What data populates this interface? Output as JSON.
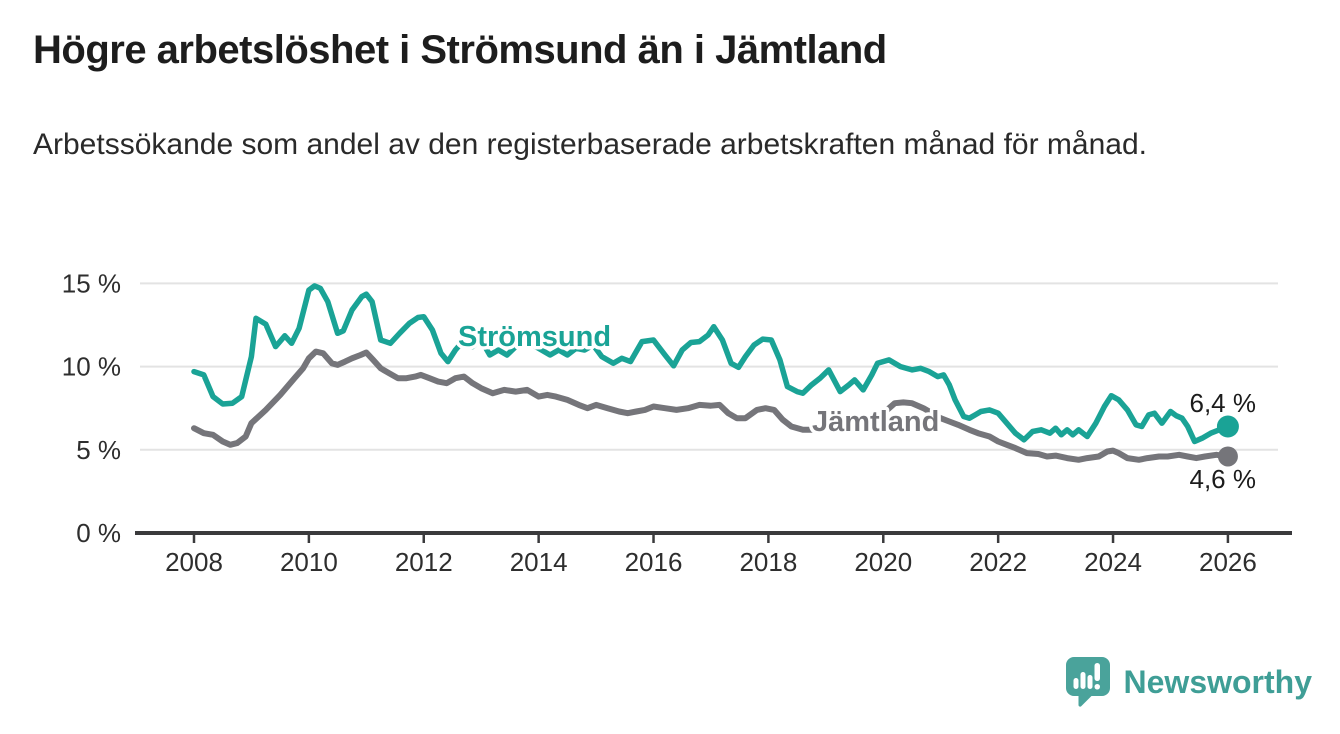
{
  "header": {
    "title": "Högre arbetslöshet i Strömsund än i Jämtland",
    "subtitle": "Arbetssökande som andel av den registerbaserade arbetskraften månad för månad."
  },
  "footer": {
    "brand": "Newsworthy"
  },
  "colors": {
    "stromsund": "#1aa396",
    "jamtland": "#75757a",
    "axis": "#3a3a3c",
    "gridline": "#e3e3e3",
    "tick_text": "#2e2e2e",
    "brand_teal": "#4aa39b",
    "brand_text": "#3f9e96"
  },
  "chart_data": {
    "type": "line",
    "title": "Högre arbetslöshet i Strömsund än i Jämtland",
    "subtitle": "Arbetssökande som andel av den registerbaserade arbetskraften månad för månad.",
    "xlabel": "",
    "ylabel": "",
    "unit": "%",
    "grid": "horizontal",
    "legend_position": "inline-labels",
    "ylim": [
      0,
      15.6
    ],
    "xlim": [
      2007,
      2027.1
    ],
    "y_ticks": [
      {
        "value": 0,
        "label": "0 %"
      },
      {
        "value": 5,
        "label": "5 %"
      },
      {
        "value": 10,
        "label": "10 %"
      },
      {
        "value": 15,
        "label": "15 %"
      }
    ],
    "x_ticks": [
      {
        "value": 2008,
        "label": "2008"
      },
      {
        "value": 2010,
        "label": "2010"
      },
      {
        "value": 2012,
        "label": "2012"
      },
      {
        "value": 2014,
        "label": "2014"
      },
      {
        "value": 2016,
        "label": "2016"
      },
      {
        "value": 2018,
        "label": "2018"
      },
      {
        "value": 2020,
        "label": "2020"
      },
      {
        "value": 2022,
        "label": "2022"
      },
      {
        "value": 2024,
        "label": "2024"
      },
      {
        "value": 2026,
        "label": "2026"
      }
    ],
    "series": [
      {
        "name": "Strömsund",
        "color": "#1aa396",
        "end_label": "6,4 %",
        "end_value": 6.4,
        "points": [
          [
            2008.0,
            9.7
          ],
          [
            2008.17,
            9.5
          ],
          [
            2008.33,
            8.2
          ],
          [
            2008.5,
            7.75
          ],
          [
            2008.67,
            7.8
          ],
          [
            2008.83,
            8.2
          ],
          [
            2009.0,
            10.6
          ],
          [
            2009.08,
            12.9
          ],
          [
            2009.25,
            12.55
          ],
          [
            2009.42,
            11.2
          ],
          [
            2009.58,
            11.85
          ],
          [
            2009.7,
            11.4
          ],
          [
            2009.83,
            12.3
          ],
          [
            2010.0,
            14.6
          ],
          [
            2010.1,
            14.85
          ],
          [
            2010.2,
            14.7
          ],
          [
            2010.33,
            13.9
          ],
          [
            2010.5,
            12.0
          ],
          [
            2010.6,
            12.15
          ],
          [
            2010.75,
            13.4
          ],
          [
            2010.92,
            14.2
          ],
          [
            2011.0,
            14.35
          ],
          [
            2011.1,
            13.9
          ],
          [
            2011.25,
            11.6
          ],
          [
            2011.42,
            11.4
          ],
          [
            2011.58,
            12.0
          ],
          [
            2011.75,
            12.6
          ],
          [
            2011.9,
            12.95
          ],
          [
            2012.0,
            13.0
          ],
          [
            2012.15,
            12.2
          ],
          [
            2012.3,
            10.8
          ],
          [
            2012.42,
            10.3
          ],
          [
            2012.55,
            11.0
          ],
          [
            2012.7,
            11.6
          ],
          [
            2012.85,
            11.2
          ],
          [
            2013.0,
            11.6
          ],
          [
            2013.15,
            10.7
          ],
          [
            2013.3,
            11.0
          ],
          [
            2013.45,
            10.7
          ],
          [
            2013.6,
            11.2
          ],
          [
            2013.75,
            11.4
          ],
          [
            2013.9,
            11.3
          ],
          [
            2014.05,
            11.0
          ],
          [
            2014.2,
            10.7
          ],
          [
            2014.35,
            11.0
          ],
          [
            2014.5,
            10.7
          ],
          [
            2014.65,
            11.1
          ],
          [
            2014.8,
            11.0
          ],
          [
            2014.95,
            11.3
          ],
          [
            2015.1,
            10.6
          ],
          [
            2015.3,
            10.2
          ],
          [
            2015.45,
            10.5
          ],
          [
            2015.6,
            10.3
          ],
          [
            2015.8,
            11.5
          ],
          [
            2016.0,
            11.6
          ],
          [
            2016.2,
            10.7
          ],
          [
            2016.35,
            10.05
          ],
          [
            2016.5,
            11.0
          ],
          [
            2016.65,
            11.45
          ],
          [
            2016.8,
            11.5
          ],
          [
            2016.95,
            11.9
          ],
          [
            2017.05,
            12.4
          ],
          [
            2017.2,
            11.6
          ],
          [
            2017.35,
            10.2
          ],
          [
            2017.48,
            9.95
          ],
          [
            2017.6,
            10.6
          ],
          [
            2017.75,
            11.3
          ],
          [
            2017.9,
            11.65
          ],
          [
            2018.05,
            11.6
          ],
          [
            2018.2,
            10.4
          ],
          [
            2018.33,
            8.8
          ],
          [
            2018.5,
            8.5
          ],
          [
            2018.6,
            8.4
          ],
          [
            2018.75,
            8.9
          ],
          [
            2018.9,
            9.3
          ],
          [
            2019.05,
            9.8
          ],
          [
            2019.25,
            8.5
          ],
          [
            2019.4,
            8.9
          ],
          [
            2019.5,
            9.2
          ],
          [
            2019.65,
            8.6
          ],
          [
            2019.8,
            9.5
          ],
          [
            2019.9,
            10.2
          ],
          [
            2020.1,
            10.4
          ],
          [
            2020.3,
            10.0
          ],
          [
            2020.5,
            9.8
          ],
          [
            2020.65,
            9.9
          ],
          [
            2020.8,
            9.7
          ],
          [
            2020.95,
            9.4
          ],
          [
            2021.05,
            9.5
          ],
          [
            2021.15,
            8.9
          ],
          [
            2021.25,
            8.0
          ],
          [
            2021.4,
            7.0
          ],
          [
            2021.5,
            6.9
          ],
          [
            2021.6,
            7.1
          ],
          [
            2021.7,
            7.3
          ],
          [
            2021.85,
            7.4
          ],
          [
            2022.0,
            7.2
          ],
          [
            2022.15,
            6.6
          ],
          [
            2022.3,
            6.0
          ],
          [
            2022.45,
            5.6
          ],
          [
            2022.6,
            6.1
          ],
          [
            2022.75,
            6.2
          ],
          [
            2022.9,
            6.0
          ],
          [
            2023.0,
            6.3
          ],
          [
            2023.1,
            5.9
          ],
          [
            2023.2,
            6.2
          ],
          [
            2023.3,
            5.9
          ],
          [
            2023.4,
            6.2
          ],
          [
            2023.55,
            5.8
          ],
          [
            2023.7,
            6.6
          ],
          [
            2023.85,
            7.6
          ],
          [
            2023.97,
            8.25
          ],
          [
            2024.1,
            8.0
          ],
          [
            2024.25,
            7.4
          ],
          [
            2024.4,
            6.5
          ],
          [
            2024.5,
            6.4
          ],
          [
            2024.62,
            7.1
          ],
          [
            2024.72,
            7.2
          ],
          [
            2024.85,
            6.6
          ],
          [
            2025.0,
            7.3
          ],
          [
            2025.1,
            7.05
          ],
          [
            2025.2,
            6.9
          ],
          [
            2025.3,
            6.4
          ],
          [
            2025.42,
            5.5
          ],
          [
            2025.55,
            5.7
          ],
          [
            2025.7,
            6.0
          ],
          [
            2025.85,
            6.2
          ],
          [
            2026.0,
            6.4
          ]
        ]
      },
      {
        "name": "Jämtland",
        "color": "#75757a",
        "end_label": "4,6 %",
        "end_value": 4.6,
        "points": [
          [
            2008.0,
            6.3
          ],
          [
            2008.17,
            6.0
          ],
          [
            2008.33,
            5.9
          ],
          [
            2008.5,
            5.5
          ],
          [
            2008.63,
            5.3
          ],
          [
            2008.75,
            5.4
          ],
          [
            2008.9,
            5.8
          ],
          [
            2009.0,
            6.6
          ],
          [
            2009.25,
            7.4
          ],
          [
            2009.5,
            8.3
          ],
          [
            2009.75,
            9.3
          ],
          [
            2009.9,
            9.9
          ],
          [
            2010.0,
            10.5
          ],
          [
            2010.12,
            10.9
          ],
          [
            2010.25,
            10.8
          ],
          [
            2010.4,
            10.2
          ],
          [
            2010.5,
            10.1
          ],
          [
            2010.63,
            10.3
          ],
          [
            2010.75,
            10.5
          ],
          [
            2010.9,
            10.7
          ],
          [
            2011.0,
            10.85
          ],
          [
            2011.12,
            10.4
          ],
          [
            2011.25,
            9.9
          ],
          [
            2011.4,
            9.6
          ],
          [
            2011.55,
            9.3
          ],
          [
            2011.7,
            9.3
          ],
          [
            2011.85,
            9.4
          ],
          [
            2011.95,
            9.5
          ],
          [
            2012.1,
            9.3
          ],
          [
            2012.25,
            9.1
          ],
          [
            2012.4,
            9.0
          ],
          [
            2012.55,
            9.3
          ],
          [
            2012.7,
            9.4
          ],
          [
            2012.85,
            9.0
          ],
          [
            2013.0,
            8.7
          ],
          [
            2013.2,
            8.4
          ],
          [
            2013.4,
            8.6
          ],
          [
            2013.6,
            8.5
          ],
          [
            2013.8,
            8.6
          ],
          [
            2014.0,
            8.2
          ],
          [
            2014.15,
            8.3
          ],
          [
            2014.3,
            8.2
          ],
          [
            2014.5,
            8.0
          ],
          [
            2014.7,
            7.7
          ],
          [
            2014.85,
            7.5
          ],
          [
            2015.0,
            7.7
          ],
          [
            2015.2,
            7.5
          ],
          [
            2015.4,
            7.3
          ],
          [
            2015.55,
            7.2
          ],
          [
            2015.7,
            7.3
          ],
          [
            2015.85,
            7.4
          ],
          [
            2016.0,
            7.6
          ],
          [
            2016.2,
            7.5
          ],
          [
            2016.4,
            7.4
          ],
          [
            2016.6,
            7.5
          ],
          [
            2016.8,
            7.7
          ],
          [
            2017.0,
            7.65
          ],
          [
            2017.15,
            7.7
          ],
          [
            2017.3,
            7.2
          ],
          [
            2017.45,
            6.9
          ],
          [
            2017.6,
            6.9
          ],
          [
            2017.8,
            7.4
          ],
          [
            2017.95,
            7.5
          ],
          [
            2018.1,
            7.4
          ],
          [
            2018.25,
            6.8
          ],
          [
            2018.4,
            6.4
          ],
          [
            2018.6,
            6.2
          ],
          [
            2018.8,
            6.2
          ],
          [
            2019.0,
            6.5
          ],
          [
            2019.2,
            6.6
          ],
          [
            2019.4,
            6.5
          ],
          [
            2019.6,
            6.6
          ],
          [
            2019.8,
            6.8
          ],
          [
            2020.0,
            7.2
          ],
          [
            2020.2,
            7.8
          ],
          [
            2020.35,
            7.85
          ],
          [
            2020.5,
            7.8
          ],
          [
            2020.7,
            7.5
          ],
          [
            2020.9,
            7.1
          ],
          [
            2021.0,
            6.9
          ],
          [
            2021.15,
            6.7
          ],
          [
            2021.3,
            6.5
          ],
          [
            2021.5,
            6.2
          ],
          [
            2021.65,
            6.0
          ],
          [
            2021.85,
            5.8
          ],
          [
            2022.0,
            5.5
          ],
          [
            2022.15,
            5.3
          ],
          [
            2022.3,
            5.1
          ],
          [
            2022.5,
            4.8
          ],
          [
            2022.7,
            4.75
          ],
          [
            2022.85,
            4.6
          ],
          [
            2023.0,
            4.65
          ],
          [
            2023.2,
            4.5
          ],
          [
            2023.4,
            4.4
          ],
          [
            2023.55,
            4.5
          ],
          [
            2023.75,
            4.6
          ],
          [
            2023.9,
            4.9
          ],
          [
            2024.0,
            4.95
          ],
          [
            2024.1,
            4.8
          ],
          [
            2024.25,
            4.5
          ],
          [
            2024.45,
            4.4
          ],
          [
            2024.6,
            4.5
          ],
          [
            2024.8,
            4.6
          ],
          [
            2024.95,
            4.6
          ],
          [
            2025.15,
            4.7
          ],
          [
            2025.3,
            4.6
          ],
          [
            2025.45,
            4.5
          ],
          [
            2025.6,
            4.6
          ],
          [
            2025.8,
            4.7
          ],
          [
            2026.0,
            4.6
          ]
        ]
      }
    ]
  }
}
